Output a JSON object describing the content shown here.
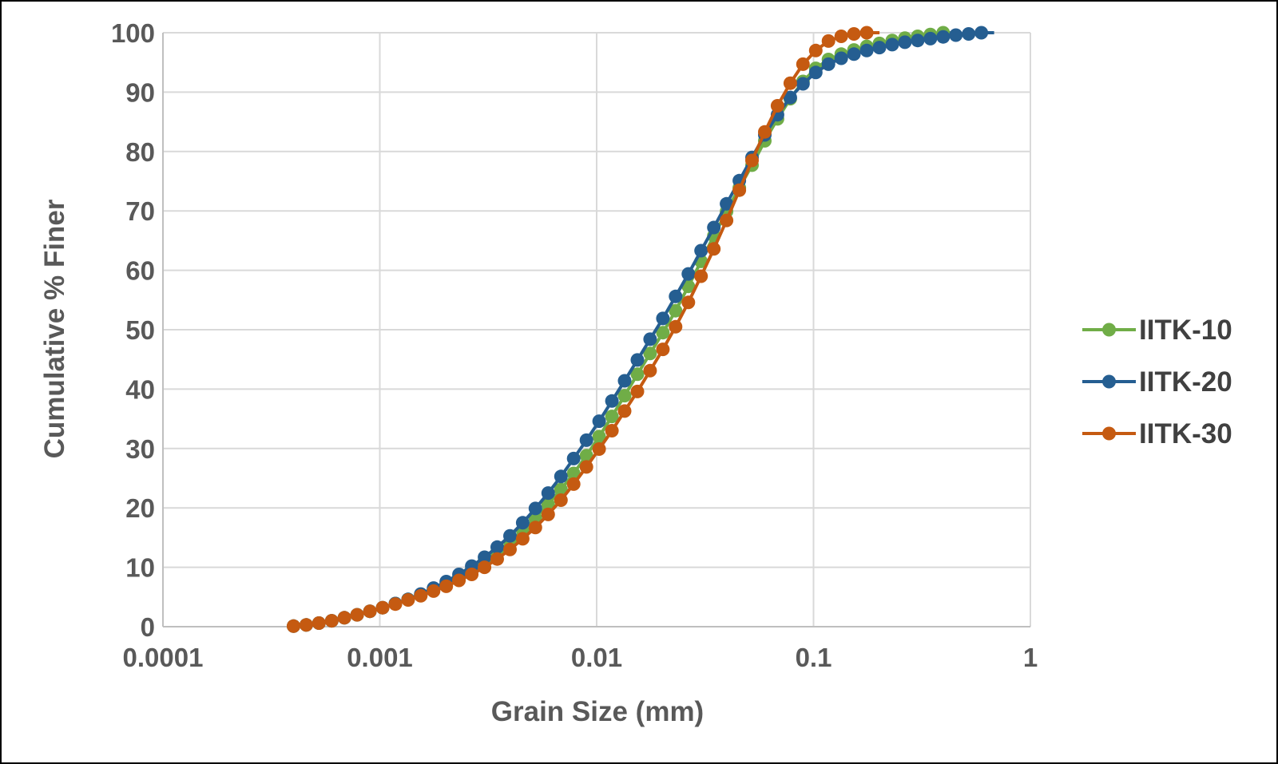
{
  "chart_data": {
    "type": "line",
    "title": "",
    "xlabel": "Grain Size (mm)",
    "ylabel": "Cumulative % Finer",
    "xscale": "log",
    "xlim": [
      0.0001,
      1
    ],
    "ylim": [
      0,
      100
    ],
    "x_ticks": [
      {
        "value": 0.0001,
        "label": "0.0001"
      },
      {
        "value": 0.001,
        "label": "0.001"
      },
      {
        "value": 0.01,
        "label": "0.01"
      },
      {
        "value": 0.1,
        "label": "0.1"
      },
      {
        "value": 1,
        "label": "1"
      }
    ],
    "y_ticks": [
      {
        "value": 0,
        "label": "0"
      },
      {
        "value": 10,
        "label": "10"
      },
      {
        "value": 20,
        "label": "20"
      },
      {
        "value": 30,
        "label": "30"
      },
      {
        "value": 40,
        "label": "40"
      },
      {
        "value": 50,
        "label": "50"
      },
      {
        "value": 60,
        "label": "60"
      },
      {
        "value": 70,
        "label": "70"
      },
      {
        "value": 80,
        "label": "80"
      },
      {
        "value": 90,
        "label": "90"
      },
      {
        "value": 100,
        "label": "100"
      }
    ],
    "grid": true,
    "legend": "right",
    "series": [
      {
        "name": "IITK-10",
        "color": "#70AD47",
        "x": [
          0.0004,
          0.000458,
          0.000524,
          0.0006,
          0.000687,
          0.000786,
          0.0009,
          0.00103,
          0.00118,
          0.00135,
          0.001545,
          0.001769,
          0.002025,
          0.002318,
          0.002654,
          0.003039,
          0.003479,
          0.003983,
          0.00456,
          0.00522,
          0.005976,
          0.006842,
          0.007833,
          0.008968,
          0.010267,
          0.011754,
          0.013457,
          0.015406,
          0.017638,
          0.020193,
          0.023118,
          0.026467,
          0.030301,
          0.03469,
          0.039715,
          0.045468,
          0.052054,
          0.059595,
          0.068228,
          0.078111,
          0.089426,
          0.10238,
          0.11721,
          0.13419,
          0.15363,
          0.17588,
          0.20136,
          0.23053,
          0.26392,
          0.30215,
          0.34592,
          0.39603
        ],
        "values": [
          0.1,
          0.3,
          0.6,
          1.0,
          1.5,
          2.0,
          2.6,
          3.2,
          3.9,
          4.6,
          5.4,
          6.3,
          7.3,
          8.4,
          9.7,
          11.1,
          12.6,
          14.3,
          16.2,
          18.3,
          20.6,
          23.1,
          25.8,
          28.8,
          32.0,
          35.4,
          38.9,
          42.5,
          46.0,
          49.5,
          53.2,
          57.3,
          61.5,
          65.8,
          69.9,
          73.9,
          77.7,
          81.8,
          85.5,
          88.9,
          91.8,
          94.0,
          95.5,
          96.4,
          97.1,
          97.7,
          98.2,
          98.7,
          99.1,
          99.4,
          99.7,
          100.0
        ]
      },
      {
        "name": "IITK-20",
        "color": "#255E91",
        "x": [
          0.0004,
          0.000458,
          0.000524,
          0.0006,
          0.000687,
          0.000786,
          0.0009,
          0.00103,
          0.00118,
          0.00135,
          0.001545,
          0.001769,
          0.002025,
          0.002318,
          0.002654,
          0.003039,
          0.003479,
          0.003983,
          0.00456,
          0.00522,
          0.005976,
          0.006842,
          0.007833,
          0.008968,
          0.010267,
          0.011754,
          0.013457,
          0.015406,
          0.017638,
          0.020193,
          0.023118,
          0.026467,
          0.030301,
          0.03469,
          0.039715,
          0.045468,
          0.052054,
          0.059595,
          0.068228,
          0.078111,
          0.089426,
          0.10238,
          0.11721,
          0.13419,
          0.15363,
          0.17588,
          0.20136,
          0.23053,
          0.26392,
          0.30215,
          0.34592,
          0.39603,
          0.4534,
          0.51907,
          0.59427
        ],
        "values": [
          0.1,
          0.3,
          0.6,
          1.0,
          1.5,
          2.0,
          2.6,
          3.2,
          3.9,
          4.6,
          5.5,
          6.5,
          7.6,
          8.8,
          10.2,
          11.7,
          13.4,
          15.3,
          17.5,
          19.9,
          22.5,
          25.3,
          28.3,
          31.4,
          34.6,
          38.0,
          41.4,
          44.9,
          48.4,
          51.9,
          55.6,
          59.4,
          63.3,
          67.2,
          71.2,
          75.1,
          79.0,
          82.8,
          86.2,
          89.1,
          91.4,
          93.3,
          94.7,
          95.7,
          96.4,
          97.0,
          97.5,
          98.0,
          98.4,
          98.7,
          99.0,
          99.3,
          99.6,
          99.8,
          100.0
        ]
      },
      {
        "name": "IITK-30",
        "color": "#C55A11",
        "x": [
          0.0004,
          0.000458,
          0.000524,
          0.0006,
          0.000687,
          0.000786,
          0.0009,
          0.00103,
          0.00118,
          0.00135,
          0.001545,
          0.001769,
          0.002025,
          0.002318,
          0.002654,
          0.003039,
          0.003479,
          0.003983,
          0.00456,
          0.00522,
          0.005976,
          0.006842,
          0.007833,
          0.008968,
          0.010267,
          0.011754,
          0.013457,
          0.015406,
          0.017638,
          0.020193,
          0.023118,
          0.026467,
          0.030301,
          0.03469,
          0.039715,
          0.045468,
          0.052054,
          0.059595,
          0.068228,
          0.078111,
          0.089426,
          0.10238,
          0.11721,
          0.13419,
          0.15363,
          0.17588
        ],
        "values": [
          0.1,
          0.3,
          0.6,
          1.0,
          1.5,
          2.0,
          2.6,
          3.2,
          3.8,
          4.5,
          5.2,
          6.0,
          6.8,
          7.8,
          8.8,
          10.0,
          11.4,
          13.0,
          14.8,
          16.7,
          18.9,
          21.3,
          24.0,
          26.9,
          29.9,
          33.0,
          36.3,
          39.6,
          43.1,
          46.7,
          50.5,
          54.6,
          59.0,
          63.6,
          68.4,
          73.5,
          78.5,
          83.3,
          87.7,
          91.5,
          94.7,
          97.0,
          98.6,
          99.4,
          99.8,
          100.0
        ]
      }
    ]
  }
}
